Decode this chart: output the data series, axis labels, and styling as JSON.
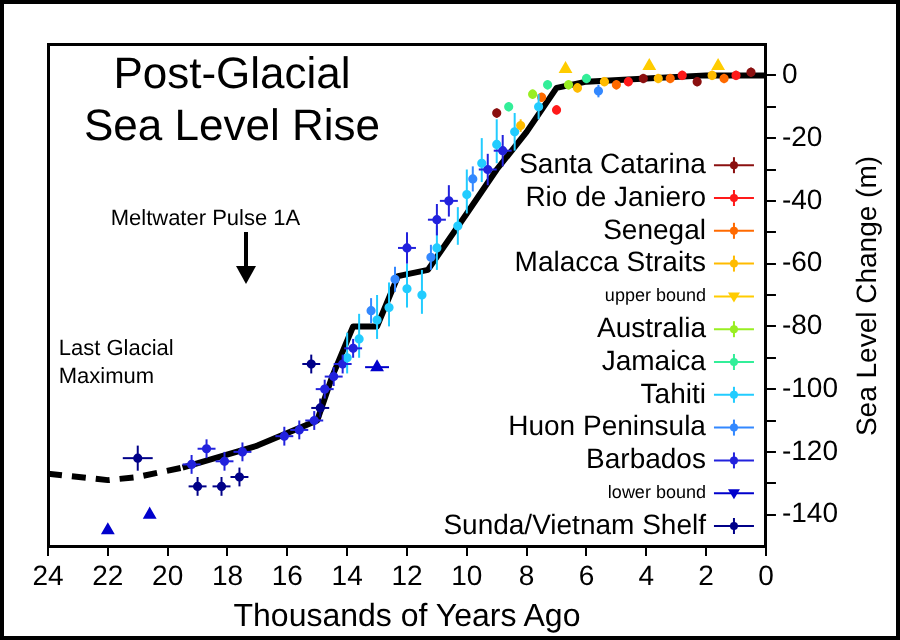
{
  "chart_data": {
    "type": "scatter",
    "title": "Post-Glacial\nSea Level Rise",
    "xlabel": "Thousands of Years Ago",
    "ylabel": "Sea Level Change (m)",
    "xlim": [
      24,
      0
    ],
    "xticks": [
      24,
      22,
      20,
      18,
      16,
      14,
      12,
      10,
      8,
      6,
      4,
      2,
      0
    ],
    "ylim": [
      -150,
      10
    ],
    "yticks": [
      {
        "value": -140,
        "label": "-140"
      },
      {
        "value": -130,
        "label": null
      },
      {
        "value": -120,
        "label": "-120"
      },
      {
        "value": -110,
        "label": null
      },
      {
        "value": -100,
        "label": "-100"
      },
      {
        "value": -90,
        "label": null
      },
      {
        "value": -80,
        "label": "-80"
      },
      {
        "value": -70,
        "label": null
      },
      {
        "value": -60,
        "label": "-60"
      },
      {
        "value": -50,
        "label": null
      },
      {
        "value": -40,
        "label": "-40"
      },
      {
        "value": -30,
        "label": null
      },
      {
        "value": -20,
        "label": "-20"
      },
      {
        "value": -10,
        "label": null
      },
      {
        "value": 0,
        "label": "0"
      }
    ],
    "grid": false,
    "legend": "bottom right",
    "marker": "circle",
    "annotations": [
      "Meltwater Pulse 1A",
      "Last Glacial\nMaximum"
    ],
    "series": [
      {
        "name": "Santa Catarina",
        "color": "#8b1010",
        "x": [
          9,
          4.1,
          2.3,
          0.5
        ],
        "values": [
          -12,
          -1,
          -2,
          1
        ],
        "errors": [
          1.5,
          1.5,
          1.5,
          1.5
        ]
      },
      {
        "name": "Rio de Janiero",
        "color": "#ff1a1a",
        "x": [
          7,
          4.6,
          2.8,
          1
        ],
        "values": [
          -11,
          -2,
          0,
          0
        ],
        "errors": [
          1.5,
          1.5,
          1.5,
          1.5
        ]
      },
      {
        "name": "Senegal",
        "color": "#ff6a00",
        "x": [
          7.5,
          5,
          3.2,
          1.4
        ],
        "values": [
          -7,
          -3,
          -1,
          -1
        ],
        "errors": [
          1.5,
          1.5,
          1.5,
          1.5
        ]
      },
      {
        "name": "Malacca Straits",
        "color": "#ffbb00",
        "x": [
          8.2,
          6.3,
          5.4,
          3.6,
          1.8
        ],
        "values": [
          -16,
          -4,
          -2,
          -1,
          0
        ],
        "errors": [
          2,
          1.5,
          1.5,
          1.5,
          1.5
        ]
      },
      {
        "name": "upper bound",
        "color": "#ffcc00",
        "marker": "triangle",
        "x": [
          6.7,
          3.9,
          1.6
        ],
        "values": [
          2,
          3,
          3
        ]
      },
      {
        "name": "Australia",
        "color": "#99ee22",
        "x": [
          7.8,
          6.6
        ],
        "values": [
          -6,
          -3
        ],
        "errors": [
          1.5,
          1.5
        ]
      },
      {
        "name": "Jamaica",
        "color": "#33ee99",
        "x": [
          8.6,
          7.3,
          6
        ],
        "values": [
          -10,
          -3,
          -1
        ],
        "errors": [
          1.5,
          1.5,
          1.5
        ]
      },
      {
        "name": "Tahiti",
        "color": "#22ccff",
        "x": [
          14,
          13.6,
          13,
          12.6,
          12,
          11.5,
          11,
          10.3,
          10,
          9.5,
          9,
          8.4,
          7.6
        ],
        "values": [
          -90,
          -84,
          -78,
          -74,
          -68,
          -70,
          -55,
          -48,
          -38,
          -28,
          -22,
          -18,
          -10
        ],
        "errors": [
          [
            -95,
            -82
          ],
          [
            -90,
            -76
          ],
          [
            -84,
            -70
          ],
          [
            -80,
            -66
          ],
          [
            -74,
            -60
          ],
          [
            -76,
            -62
          ],
          [
            -62,
            -48
          ],
          [
            -54,
            -42
          ],
          [
            -44,
            -30
          ],
          [
            -34,
            -20
          ],
          [
            -28,
            -14
          ],
          [
            -24,
            -12
          ],
          [
            -14,
            -6
          ]
        ]
      },
      {
        "name": "Huon Peninsula",
        "color": "#3388ff",
        "x": [
          13.2,
          12.4,
          11.2,
          9.8,
          5.6
        ],
        "values": [
          -75,
          -65,
          -58,
          -33,
          -5
        ],
        "errors": [
          4,
          4,
          4,
          4,
          2
        ]
      },
      {
        "name": "Barbados",
        "color": "#2222dd",
        "x": [
          19.2,
          18.7,
          18.1,
          17.5,
          16.1,
          15.6,
          15.1,
          14.75,
          14.45,
          14.15,
          13.8,
          12,
          11,
          10.6,
          9.3,
          8.8
        ],
        "values": [
          -124,
          -119,
          -123,
          -120,
          -115,
          -113,
          -110,
          -100,
          -96,
          -92,
          -87,
          -55,
          -46,
          -40,
          -30,
          -24
        ],
        "errors": [
          3,
          3,
          3,
          3,
          3,
          3,
          3,
          3,
          3,
          3,
          3,
          5,
          5,
          5,
          5,
          5
        ],
        "xerrors": [
          0.3,
          0.3,
          0.3,
          0.3,
          0.3,
          0.3,
          0.3,
          0.3,
          0.3,
          0.3,
          0.3,
          0.3,
          0.3,
          0.3,
          0.3,
          0.3
        ]
      },
      {
        "name": "lower bound",
        "color": "#0000cc",
        "marker": "triangle",
        "x": [
          22,
          20.6,
          13
        ],
        "values": [
          -145,
          -140,
          -93
        ],
        "xerrors": [
          null,
          null,
          0.4
        ]
      },
      {
        "name": "Sunda/Vietnam Shelf",
        "color": "#000088",
        "x": [
          21,
          19,
          18.2,
          17.6,
          14.9,
          15.2
        ],
        "values": [
          -122,
          -131,
          -131,
          -128,
          -106,
          -92
        ],
        "errors": [
          4,
          3,
          3,
          3,
          3,
          3
        ],
        "xerrors": [
          0.5,
          0.3,
          0.3,
          0.3,
          0.3,
          0.3
        ]
      },
      {
        "type": "line",
        "color": "#000000",
        "marker": "none",
        "line_style": "dashed",
        "x": [
          24,
          22,
          21,
          19.5
        ],
        "values": [
          -127,
          -129,
          -128,
          -125
        ]
      },
      {
        "type": "line",
        "color": "#000000",
        "marker": "none",
        "line_style": "solid",
        "x": [
          19.5,
          17,
          16,
          15,
          14.5,
          13.8,
          13,
          12.3,
          11.3,
          10,
          9,
          8,
          7,
          6,
          4,
          2,
          0
        ],
        "values": [
          -125,
          -118,
          -114,
          -110,
          -96,
          -80,
          -80,
          -64,
          -62,
          -44,
          -30,
          -18,
          -4,
          -2,
          -1,
          0,
          0
        ]
      }
    ]
  }
}
